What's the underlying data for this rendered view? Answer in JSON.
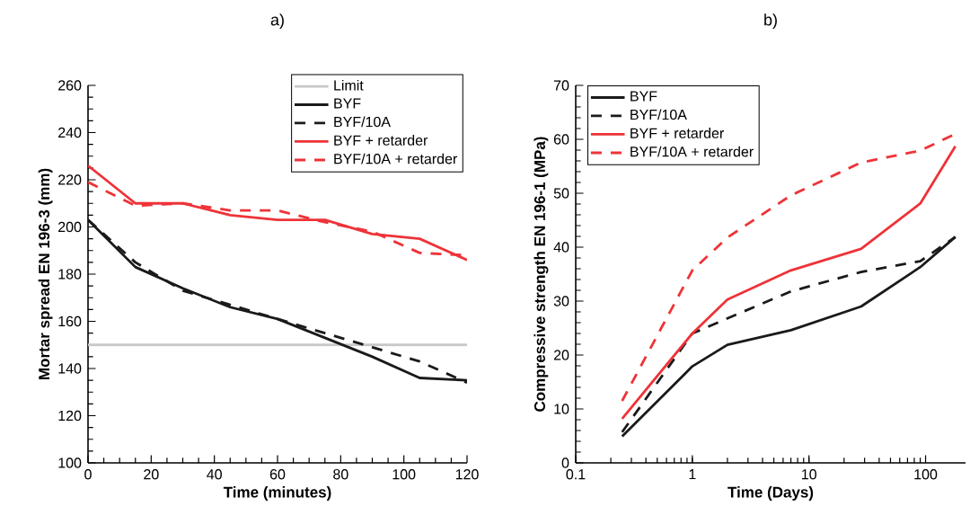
{
  "chart_data": [
    {
      "type": "line",
      "title": "a)",
      "xlabel": "Time (minutes)",
      "ylabel": "Mortar spread EN 196-3 (mm)",
      "x": [
        0,
        15,
        30,
        45,
        60,
        75,
        90,
        105,
        120
      ],
      "xlim": [
        0,
        120
      ],
      "ylim": [
        100,
        260
      ],
      "xticks": [
        0,
        20,
        40,
        60,
        80,
        100,
        120
      ],
      "yticks": [
        100,
        120,
        140,
        160,
        180,
        200,
        220,
        240,
        260
      ],
      "legend": "top right",
      "series": [
        {
          "name": "Limit",
          "color": "#c8c8c8",
          "x": [
            0,
            120
          ],
          "values": [
            150,
            150
          ],
          "line_style": "solid"
        },
        {
          "name": "BYF",
          "color": "#1a1a1a",
          "values": [
            203,
            183,
            174,
            166,
            161,
            153,
            145,
            136,
            135
          ],
          "line_style": "solid"
        },
        {
          "name": "BYF/10A",
          "color": "#1a1a1a",
          "values": [
            203,
            185,
            173,
            167,
            161,
            155,
            149,
            143,
            134
          ],
          "line_style": "dashed"
        },
        {
          "name": "BYF + retarder",
          "color": "#ee3338",
          "values": [
            226,
            210,
            210,
            205,
            203,
            203,
            197,
            195,
            186
          ],
          "line_style": "solid"
        },
        {
          "name": "BYF/10A + retarder",
          "color": "#ee3338",
          "values": [
            219,
            209,
            210,
            207,
            207,
            202,
            198,
            189,
            188
          ],
          "line_style": "dashed"
        }
      ]
    },
    {
      "type": "line",
      "title": "b)",
      "xlabel": "Time (Days)",
      "ylabel": "Compressive strength EN 196-1 (MPa)",
      "x": [
        0.25,
        1,
        2,
        7,
        28,
        90,
        180
      ],
      "log": "x",
      "xlim": [
        0.1,
        220
      ],
      "ylim": [
        0,
        70
      ],
      "xticks": [
        0.1,
        1,
        10,
        100
      ],
      "yticks": [
        0,
        10,
        20,
        30,
        40,
        50,
        60,
        70
      ],
      "legend": "top left",
      "series": [
        {
          "name": "BYF",
          "color": "#1a1a1a",
          "values": [
            4.9,
            17.9,
            21.9,
            24.6,
            29.0,
            36.3,
            41.9
          ],
          "line_style": "solid"
        },
        {
          "name": "BYF/10A",
          "color": "#1a1a1a",
          "values": [
            5.7,
            24.0,
            26.8,
            31.8,
            35.4,
            37.4,
            41.9
          ],
          "line_style": "dashed"
        },
        {
          "name": "BYF + retarder",
          "color": "#ee3338",
          "values": [
            8.2,
            24.0,
            30.3,
            35.7,
            39.7,
            48.1,
            58.7
          ],
          "line_style": "solid"
        },
        {
          "name": "BYF/10A + retarder",
          "color": "#ee3338",
          "values": [
            11.5,
            35.7,
            41.8,
            49.6,
            55.7,
            57.9,
            61.0
          ],
          "line_style": "dashed"
        }
      ]
    }
  ]
}
